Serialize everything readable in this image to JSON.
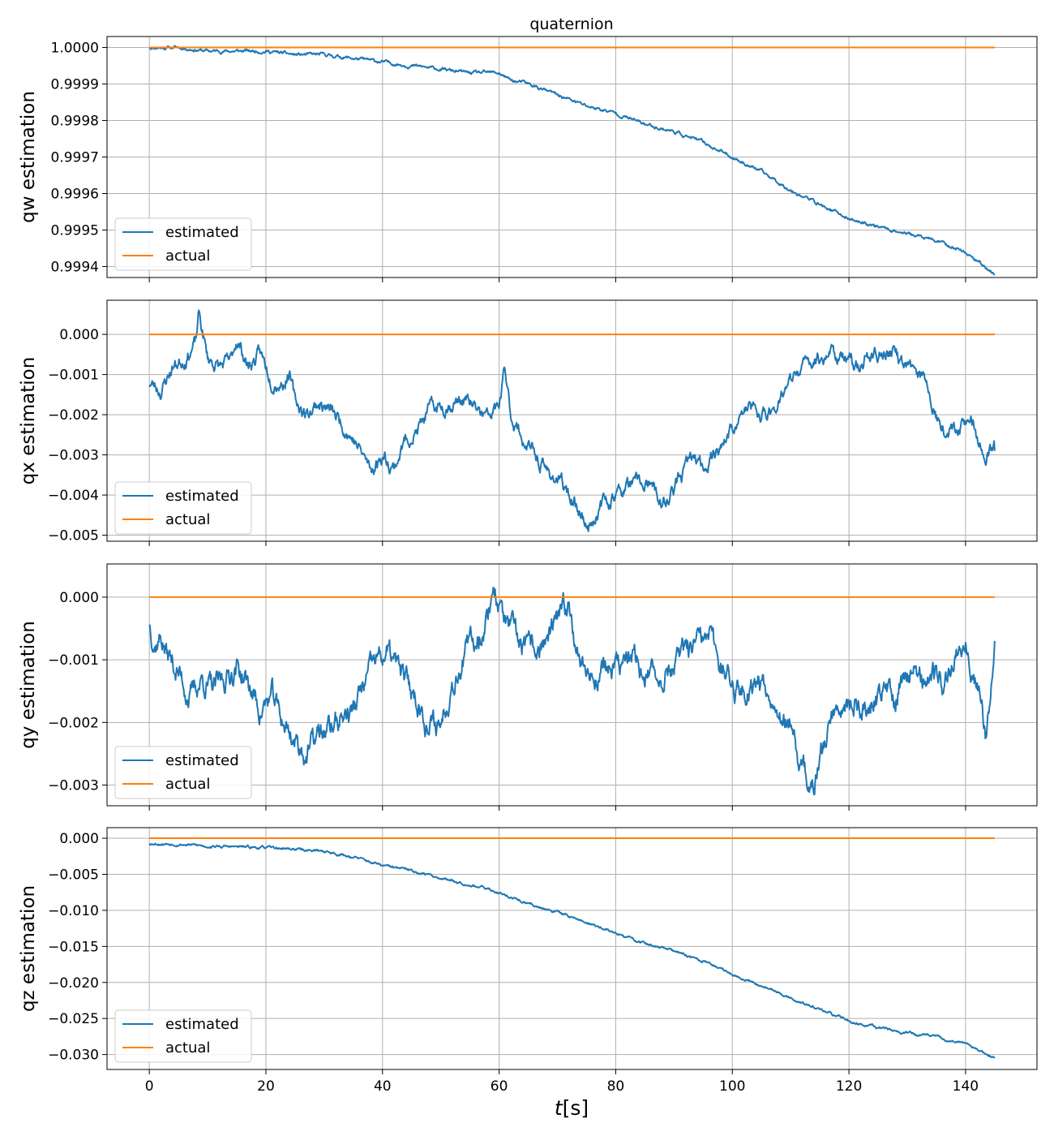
{
  "figure_title": "quaternion",
  "shared_xlabel_math": "t",
  "shared_xlabel_unit": "[s]",
  "colors": {
    "estimated": "#1f77b4",
    "actual": "#ff7f0e",
    "grid": "#b0b0b0"
  },
  "chart_data": [
    {
      "type": "line",
      "id": "qw",
      "ylabel": "qw estimation",
      "xlim": [
        -7.25,
        152.25
      ],
      "ylim": [
        0.99937,
        1.00003
      ],
      "xticks": [
        0,
        20,
        40,
        60,
        80,
        100,
        120,
        140
      ],
      "yticks": [
        0.9994,
        0.9995,
        0.9996,
        0.9997,
        0.9998,
        0.9999,
        1.0
      ],
      "ytick_labels": [
        "0.9994",
        "0.9995",
        "0.9996",
        "0.9997",
        "0.9998",
        "0.9999",
        "1.0000"
      ],
      "grid": true,
      "legend": "lower left",
      "series": [
        {
          "name": "estimated",
          "color": "#1f77b4",
          "x": [
            0,
            5,
            10,
            15,
            20,
            25,
            30,
            35,
            40,
            45,
            50,
            55,
            60,
            62,
            65,
            70,
            75,
            80,
            85,
            90,
            95,
            100,
            105,
            110,
            115,
            120,
            125,
            130,
            135,
            140,
            145
          ],
          "y": [
            1.0,
            1.0,
            0.99999,
            0.99999,
            0.99999,
            0.99998,
            0.99998,
            0.99997,
            0.99996,
            0.99995,
            0.99994,
            0.99993,
            0.99993,
            0.99991,
            0.9999,
            0.99987,
            0.99984,
            0.99982,
            0.99979,
            0.99977,
            0.99974,
            0.9997,
            0.99966,
            0.99961,
            0.99957,
            0.99953,
            0.99951,
            0.99949,
            0.99947,
            0.99944,
            0.99938
          ],
          "noise": 3e-06,
          "seed": 11
        },
        {
          "name": "actual",
          "color": "#ff7f0e",
          "x": [
            0,
            145
          ],
          "y": [
            1.0,
            1.0
          ],
          "noise": 0,
          "seed": 1
        }
      ]
    },
    {
      "type": "line",
      "id": "qx",
      "ylabel": "qx estimation",
      "xlim": [
        -7.25,
        152.25
      ],
      "ylim": [
        -0.00515,
        0.00085
      ],
      "xticks": [
        0,
        20,
        40,
        60,
        80,
        100,
        120,
        140
      ],
      "yticks": [
        -0.005,
        -0.004,
        -0.003,
        -0.002,
        -0.001,
        0.0
      ],
      "ytick_labels": [
        "−0.005",
        "−0.004",
        "−0.003",
        "−0.002",
        "−0.001",
        "0.000"
      ],
      "grid": true,
      "legend": "lower left",
      "series": [
        {
          "name": "estimated",
          "color": "#1f77b4",
          "x": [
            0,
            2,
            4,
            6,
            8,
            8.5,
            10,
            12,
            14,
            15,
            17,
            19,
            21,
            23,
            24,
            25,
            27,
            29,
            31,
            33,
            35,
            37,
            38,
            40,
            42,
            44,
            46,
            48,
            50,
            52,
            54,
            56,
            58,
            60,
            61,
            62,
            64,
            66,
            68,
            70,
            72,
            74,
            75,
            76,
            78,
            80,
            82,
            84,
            86,
            88,
            89,
            91,
            93,
            95,
            97,
            99,
            101,
            103,
            105,
            107,
            109,
            111,
            113,
            115,
            117,
            119,
            121,
            123,
            125,
            127,
            129,
            131,
            133,
            135,
            137,
            139,
            141,
            143,
            145
          ],
          "y": [
            -0.0012,
            -0.0014,
            -0.0008,
            -0.0006,
            -0.0002,
            0.0005,
            -0.0006,
            -0.0008,
            -0.0007,
            -0.0001,
            -0.0008,
            -0.0005,
            -0.0011,
            -0.0012,
            -0.0009,
            -0.0017,
            -0.002,
            -0.0017,
            -0.0019,
            -0.0022,
            -0.0026,
            -0.0031,
            -0.0034,
            -0.003,
            -0.0033,
            -0.0026,
            -0.0024,
            -0.0019,
            -0.0018,
            -0.0017,
            -0.0016,
            -0.0019,
            -0.0021,
            -0.0018,
            -0.0009,
            -0.002,
            -0.0026,
            -0.003,
            -0.0034,
            -0.0036,
            -0.004,
            -0.0044,
            -0.0048,
            -0.0046,
            -0.0042,
            -0.004,
            -0.0038,
            -0.0037,
            -0.0038,
            -0.0043,
            -0.0041,
            -0.0036,
            -0.0031,
            -0.0033,
            -0.0029,
            -0.0026,
            -0.0021,
            -0.0018,
            -0.0021,
            -0.0018,
            -0.0014,
            -0.001,
            -0.0007,
            -0.0006,
            -0.0004,
            -0.0006,
            -0.0008,
            -0.0006,
            -0.0005,
            -0.0004,
            -0.0007,
            -0.0009,
            -0.0011,
            -0.002,
            -0.0024,
            -0.0022,
            -0.0021,
            -0.003,
            -0.0029
          ],
          "noise": 0.00012,
          "seed": 23
        },
        {
          "name": "actual",
          "color": "#ff7f0e",
          "x": [
            0,
            145
          ],
          "y": [
            0.0,
            0.0
          ],
          "noise": 0,
          "seed": 2
        }
      ]
    },
    {
      "type": "line",
      "id": "qy",
      "ylabel": "qy estimation",
      "xlim": [
        -7.25,
        152.25
      ],
      "ylim": [
        -0.00333,
        0.00053
      ],
      "xticks": [
        0,
        20,
        40,
        60,
        80,
        100,
        120,
        140
      ],
      "yticks": [
        -0.003,
        -0.002,
        -0.001,
        0.0
      ],
      "ytick_labels": [
        "−0.003",
        "−0.002",
        "−0.001",
        "0.000"
      ],
      "grid": true,
      "legend": "lower left",
      "series": [
        {
          "name": "estimated",
          "color": "#1f77b4",
          "x": [
            0,
            1,
            2,
            3,
            5,
            7,
            9,
            11,
            13,
            15,
            17,
            19,
            21,
            23,
            25,
            27,
            29,
            31,
            33,
            35,
            37,
            39,
            41,
            43,
            45,
            47,
            48,
            50,
            52,
            54,
            56,
            58,
            59,
            61,
            63,
            65,
            67,
            69,
            71,
            72,
            74,
            76,
            78,
            80,
            82,
            84,
            86,
            88,
            90,
            92,
            94,
            96,
            98,
            100,
            102,
            104,
            106,
            108,
            110,
            111,
            113,
            114,
            116,
            118,
            120,
            122,
            124,
            126,
            128,
            130,
            132,
            134,
            136,
            138,
            140,
            142,
            143.5,
            145
          ],
          "y": [
            -0.0004,
            -0.0007,
            -0.0006,
            -0.0009,
            -0.0012,
            -0.0016,
            -0.0013,
            -0.0015,
            -0.0013,
            -0.0011,
            -0.0014,
            -0.0018,
            -0.0016,
            -0.002,
            -0.0023,
            -0.0025,
            -0.0022,
            -0.0021,
            -0.0019,
            -0.0018,
            -0.0014,
            -0.001,
            -0.0009,
            -0.0012,
            -0.0015,
            -0.0018,
            -0.0021,
            -0.002,
            -0.0013,
            -0.0009,
            -0.0007,
            -0.0003,
            0.0002,
            -0.0004,
            -0.0007,
            -0.0009,
            -0.0008,
            -0.0006,
            -0.0003,
            -0.0001,
            -0.001,
            -0.0013,
            -0.0011,
            -0.0012,
            -0.001,
            -0.0011,
            -0.0013,
            -0.0012,
            -0.0011,
            -0.0009,
            -0.0008,
            -0.0007,
            -0.001,
            -0.0014,
            -0.0015,
            -0.0013,
            -0.0014,
            -0.0017,
            -0.0022,
            -0.0026,
            -0.0029,
            -0.0031,
            -0.0022,
            -0.0017,
            -0.0016,
            -0.0018,
            -0.0017,
            -0.0015,
            -0.0016,
            -0.0011,
            -0.0013,
            -0.0012,
            -0.0014,
            -0.001,
            -0.0006,
            -0.0013,
            -0.0022,
            -0.0007
          ],
          "noise": 0.00013,
          "seed": 37
        },
        {
          "name": "actual",
          "color": "#ff7f0e",
          "x": [
            0,
            145
          ],
          "y": [
            0.0,
            0.0
          ],
          "noise": 0,
          "seed": 3
        }
      ]
    },
    {
      "type": "line",
      "id": "qz",
      "ylabel": "qz estimation",
      "xlim": [
        -7.25,
        152.25
      ],
      "ylim": [
        -0.03207,
        0.00147
      ],
      "xticks": [
        0,
        20,
        40,
        60,
        80,
        100,
        120,
        140
      ],
      "xtick_labels": [
        "0",
        "20",
        "40",
        "60",
        "80",
        "100",
        "120",
        "140"
      ],
      "yticks": [
        -0.03,
        -0.025,
        -0.02,
        -0.015,
        -0.01,
        -0.005,
        0.0
      ],
      "ytick_labels": [
        "−0.030",
        "−0.025",
        "−0.020",
        "−0.015",
        "−0.010",
        "−0.005",
        "0.000"
      ],
      "grid": true,
      "legend": "lower left",
      "series": [
        {
          "name": "estimated",
          "color": "#1f77b4",
          "x": [
            0,
            5,
            10,
            15,
            20,
            25,
            30,
            35,
            40,
            45,
            50,
            55,
            60,
            65,
            70,
            75,
            80,
            85,
            90,
            95,
            100,
            105,
            110,
            115,
            120,
            125,
            130,
            135,
            140,
            145
          ],
          "y": [
            -0.0007,
            -0.0008,
            -0.0011,
            -0.0012,
            -0.0013,
            -0.0015,
            -0.0018,
            -0.0026,
            -0.0038,
            -0.0045,
            -0.0055,
            -0.0064,
            -0.0075,
            -0.0091,
            -0.0102,
            -0.0117,
            -0.0132,
            -0.0146,
            -0.0157,
            -0.017,
            -0.0188,
            -0.0204,
            -0.0222,
            -0.0238,
            -0.0253,
            -0.0263,
            -0.027,
            -0.0276,
            -0.0285,
            -0.0305
          ],
          "noise": 0.00012,
          "seed": 53
        },
        {
          "name": "actual",
          "color": "#ff7f0e",
          "x": [
            0,
            145
          ],
          "y": [
            0.0,
            0.0
          ],
          "noise": 0,
          "seed": 4
        }
      ]
    }
  ]
}
